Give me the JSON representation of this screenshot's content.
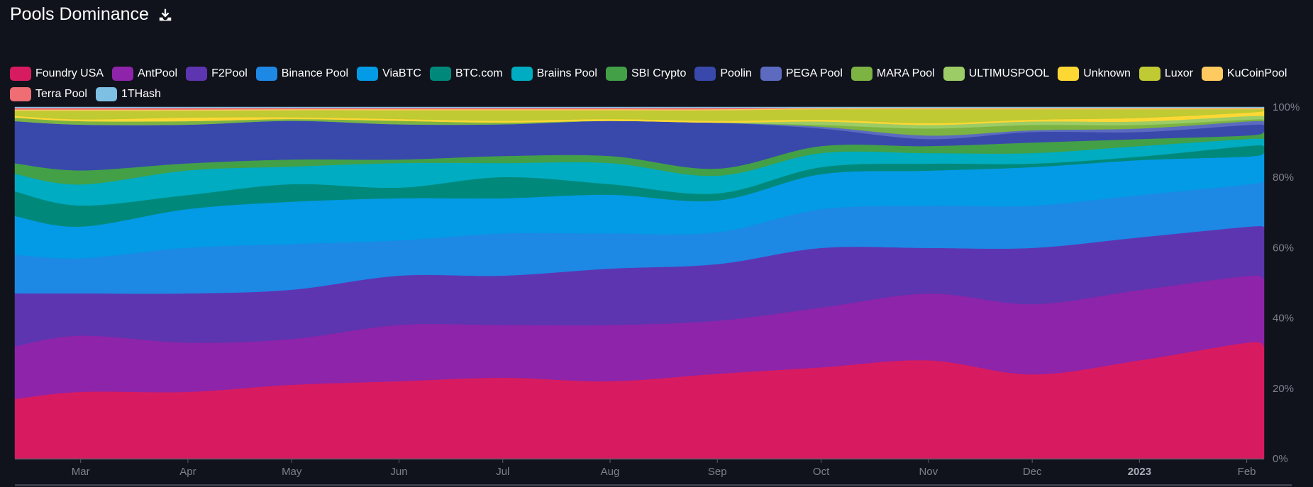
{
  "header": {
    "title": "Pools Dominance",
    "download_icon": "download-icon"
  },
  "background": "#11131c",
  "chart_data": {
    "type": "area",
    "stacked": true,
    "normalized": true,
    "title": "Pools Dominance",
    "x": [
      "2022-02-10",
      "2022-03-01",
      "2022-04-01",
      "2022-05-01",
      "2022-06-01",
      "2022-07-01",
      "2022-08-01",
      "2022-09-01",
      "2022-10-01",
      "2022-11-01",
      "2022-12-01",
      "2023-01-01",
      "2023-02-01",
      "2023-02-06"
    ],
    "x_ticks": [
      {
        "date": "2022-03-01",
        "label": "Mar"
      },
      {
        "date": "2022-04-01",
        "label": "Apr"
      },
      {
        "date": "2022-05-01",
        "label": "May"
      },
      {
        "date": "2022-06-01",
        "label": "Jun"
      },
      {
        "date": "2022-07-01",
        "label": "Jul"
      },
      {
        "date": "2022-08-01",
        "label": "Aug"
      },
      {
        "date": "2022-09-01",
        "label": "Sep"
      },
      {
        "date": "2022-10-01",
        "label": "Oct"
      },
      {
        "date": "2022-11-01",
        "label": "Nov"
      },
      {
        "date": "2022-12-01",
        "label": "Dec"
      },
      {
        "date": "2023-01-01",
        "label": "2023",
        "bold": true
      },
      {
        "date": "2023-02-01",
        "label": "Feb"
      }
    ],
    "y_ticks": [
      {
        "value": 0,
        "label": "0%"
      },
      {
        "value": 20,
        "label": "20%"
      },
      {
        "value": 40,
        "label": "40%"
      },
      {
        "value": 60,
        "label": "60%"
      },
      {
        "value": 80,
        "label": "80%"
      },
      {
        "value": 100,
        "label": "100%"
      }
    ],
    "ylim": [
      0,
      100
    ],
    "ylabel_position": "right",
    "legend_position": "top-left",
    "series": [
      {
        "name": "Foundry USA",
        "color": "#d81b60",
        "values": [
          17,
          19,
          19,
          21,
          22,
          23,
          22,
          24,
          26,
          28,
          24,
          28,
          33,
          32
        ]
      },
      {
        "name": "AntPool",
        "color": "#8e24aa",
        "values": [
          15,
          16,
          14,
          13,
          16,
          15,
          16,
          15,
          17,
          19,
          20,
          20,
          19,
          19
        ]
      },
      {
        "name": "F2Pool",
        "color": "#5e35b1",
        "values": [
          15,
          12,
          14,
          14,
          14,
          14,
          16,
          16,
          17,
          13,
          16,
          15,
          14,
          15
        ]
      },
      {
        "name": "Binance Pool",
        "color": "#1e88e5",
        "values": [
          11,
          10,
          13,
          13,
          10,
          12,
          10,
          9,
          11,
          12,
          12,
          12,
          12,
          13
        ]
      },
      {
        "name": "ViaBTC",
        "color": "#039be5",
        "values": [
          11,
          9,
          11,
          12,
          12,
          10,
          11,
          9,
          10,
          10,
          11,
          10,
          8,
          8
        ]
      },
      {
        "name": "BTC.com",
        "color": "#00897b",
        "values": [
          7,
          6,
          4,
          5,
          3,
          6,
          3,
          2,
          2,
          2,
          1,
          1,
          3,
          2
        ]
      },
      {
        "name": "Braiins Pool",
        "color": "#00acc1",
        "values": [
          5,
          6,
          7,
          5,
          7,
          4,
          6,
          5,
          4,
          3,
          3,
          3,
          2,
          2
        ]
      },
      {
        "name": "SBI Crypto",
        "color": "#43a047",
        "values": [
          3,
          4,
          2,
          2,
          1,
          2,
          2,
          2,
          2,
          2,
          3,
          2,
          1,
          2
        ]
      },
      {
        "name": "Poolin",
        "color": "#3949ab",
        "values": [
          12,
          13,
          11,
          11,
          10,
          9,
          10,
          13,
          5,
          2,
          3,
          2,
          3,
          2
        ]
      },
      {
        "name": "PEGA Pool",
        "color": "#5c6bc0",
        "values": [
          0,
          0,
          0,
          0,
          0,
          0,
          0,
          0,
          0.5,
          1,
          0.5,
          1,
          1,
          1
        ]
      },
      {
        "name": "MARA Pool",
        "color": "#7cb342",
        "values": [
          1,
          1,
          1,
          0.5,
          1,
          0.5,
          0,
          0,
          0.5,
          2,
          1.5,
          1,
          0.5,
          0.5
        ]
      },
      {
        "name": "ULTIMUSPOOL",
        "color": "#9ccc65",
        "values": [
          0,
          0,
          0,
          0,
          0,
          0,
          0,
          0,
          1,
          1,
          1,
          1,
          1,
          1
        ]
      },
      {
        "name": "Unknown",
        "color": "#fdd835",
        "values": [
          0.5,
          0.5,
          1,
          0.5,
          0.5,
          0.5,
          0.5,
          0.5,
          0.5,
          0.5,
          0.5,
          1,
          1,
          1.5
        ]
      },
      {
        "name": "Luxor",
        "color": "#c0ca33",
        "values": [
          1.5,
          2.5,
          2,
          2,
          2.5,
          3,
          2.5,
          3,
          3,
          4,
          3,
          2.5,
          1,
          0.5
        ]
      },
      {
        "name": "KuCoinPool",
        "color": "#ffca5f",
        "values": [
          0.3,
          0.3,
          0.3,
          0.3,
          0.3,
          0.3,
          0.3,
          0.3,
          0.3,
          0.3,
          0.3,
          0.3,
          0.3,
          0.3
        ]
      },
      {
        "name": "Terra Pool",
        "color": "#ee6e73",
        "values": [
          0.5,
          0.5,
          0.5,
          0.4,
          0.4,
          0.4,
          0.4,
          0.4,
          0.1,
          0.1,
          0.1,
          0.1,
          0.1,
          0.1
        ]
      },
      {
        "name": "1THash",
        "color": "#7ec0e4",
        "values": [
          0.2,
          0.2,
          0.2,
          0.2,
          0.2,
          0.2,
          0.2,
          0.2,
          0.2,
          0.2,
          0.2,
          0.2,
          0.2,
          0.2
        ]
      }
    ]
  }
}
